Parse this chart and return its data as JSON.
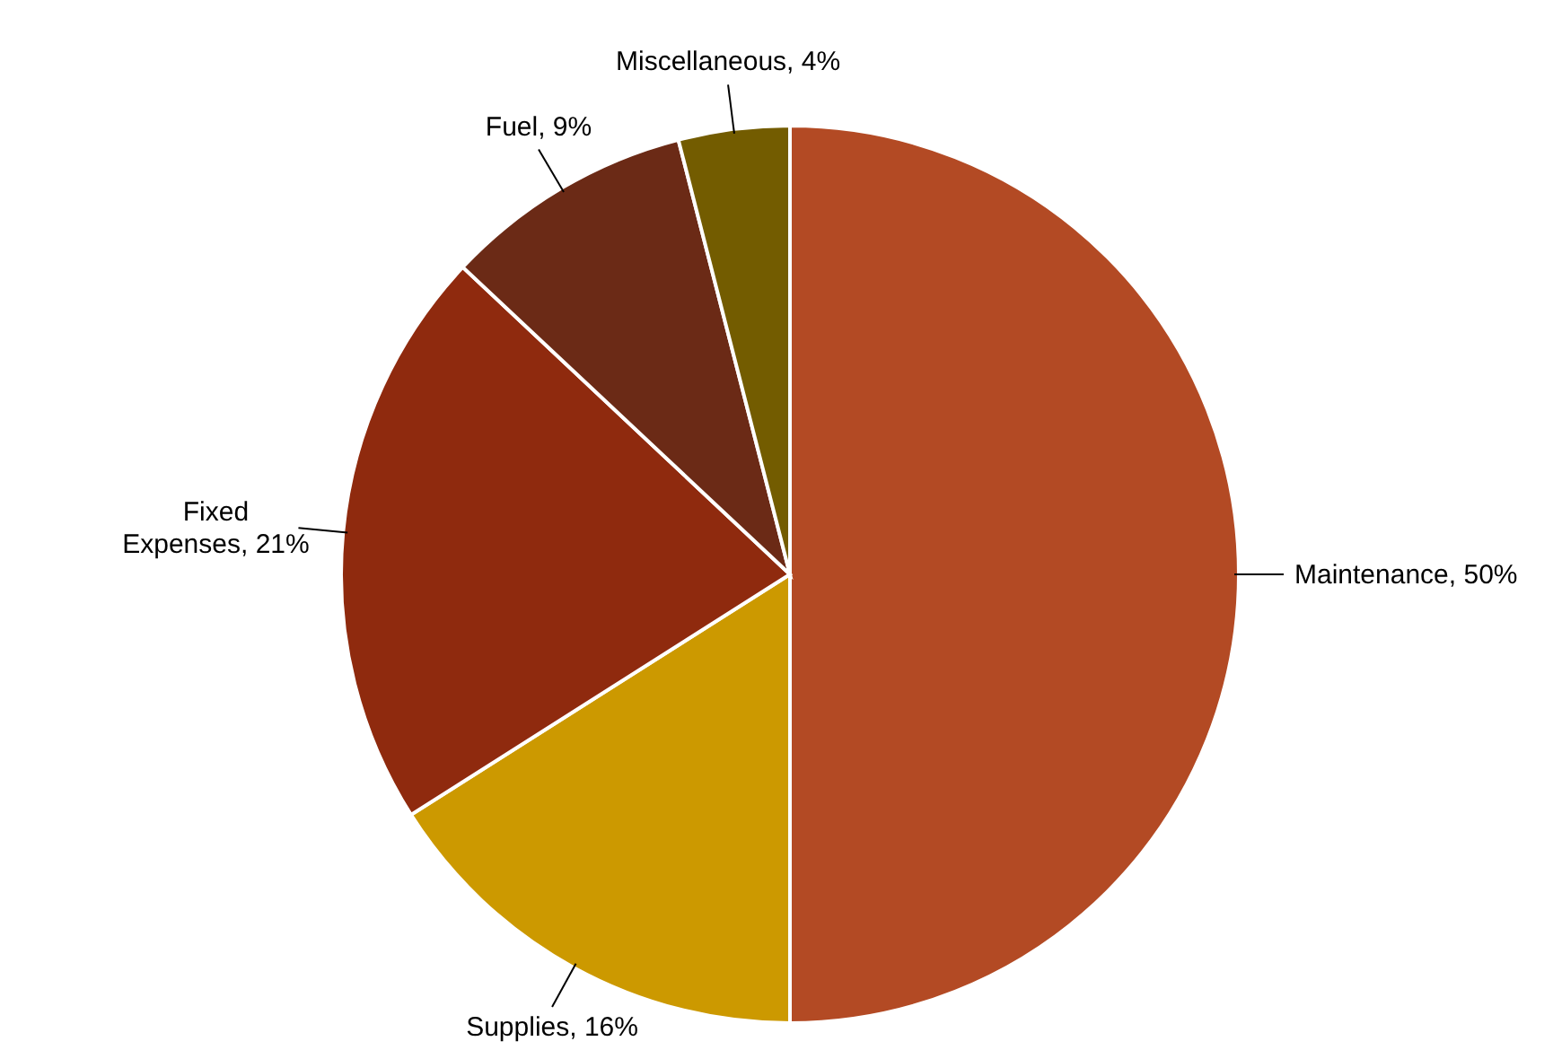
{
  "chart_data": {
    "type": "pie",
    "categories": [
      "Maintenance",
      "Supplies",
      "Fixed Expenses",
      "Fuel",
      "Miscellaneous"
    ],
    "values": [
      50,
      16,
      21,
      9,
      4
    ],
    "value_labels": [
      "50%",
      "16%",
      "21%",
      "9%",
      "4%"
    ],
    "colors": [
      "#b34a24",
      "#cc9900",
      "#8f2a0e",
      "#6b2a16",
      "#735c00"
    ]
  }
}
